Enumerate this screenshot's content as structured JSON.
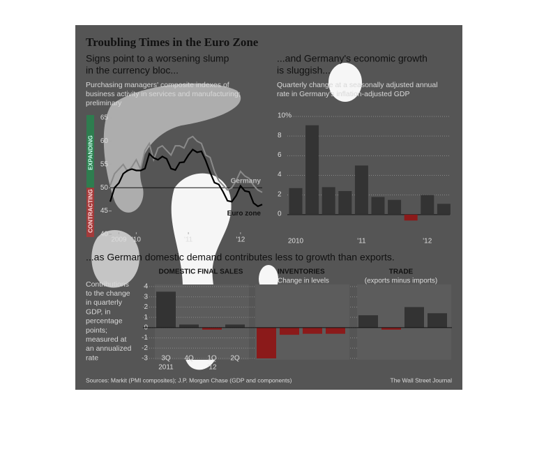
{
  "page": {
    "title": "Troubling Times in the Euro Zone",
    "section_title": "...as German domestic demand contributes less to growth than exports.",
    "section_note": [
      "Contributions",
      "to the change",
      "in quarterly",
      "GDP, in",
      "percentage",
      "points;",
      "measured at",
      "an annualized",
      "rate"
    ],
    "source": "Sources: Markit (PMI composites); J.P. Morgan Chase (GDP and components)",
    "credit": "The Wall Street Journal"
  },
  "chart_data": [
    {
      "type": "line",
      "title": [
        "Signs point to a worsening slump",
        "in the currency bloc..."
      ],
      "subtitle": [
        "Purchasing managers' composite indexes of",
        "business activity in services and manufacturing;",
        "preliminary"
      ],
      "categories": [
        null,
        null,
        "2009",
        null,
        null,
        null,
        "'10",
        null,
        null,
        null,
        null,
        null,
        null,
        null,
        null,
        null,
        null,
        null,
        "'11",
        null,
        null,
        null,
        null,
        null,
        null,
        null,
        null,
        null,
        null,
        null,
        "'12",
        null,
        null,
        null,
        null,
        null
      ],
      "series": [
        {
          "name": "Germany",
          "color": "#8a8a8a",
          "values": [
            50.5,
            53,
            54,
            55,
            53.5,
            54.5,
            56,
            54,
            58,
            59.5,
            56,
            58.5,
            59,
            58,
            57,
            59,
            59,
            58.5,
            60.5,
            61,
            60,
            59.5,
            57,
            56.5,
            53.5,
            51.5,
            50.5,
            49.5,
            50,
            51.5,
            53.5,
            52.5,
            52,
            50.5,
            49.5,
            49
          ]
        },
        {
          "name": "Euro zone",
          "color": "#000000",
          "values": [
            47,
            50,
            51,
            53,
            53.7,
            54,
            53.7,
            53.7,
            54.1,
            57.3,
            56.4,
            56,
            56.7,
            56.2,
            54.1,
            53.8,
            55.4,
            55.5,
            57,
            58.2,
            57.6,
            57.8,
            55.8,
            53.3,
            51.1,
            50.7,
            49.1,
            47.2,
            47,
            48.3,
            50.4,
            49.3,
            49.1,
            46.7,
            46,
            46.4
          ]
        }
      ],
      "ylim": [
        40,
        65
      ],
      "yticks": [
        40,
        45,
        50,
        55,
        60,
        65
      ],
      "reference_line": 50,
      "zones": [
        "EXPANDING",
        "CONTRACTING"
      ]
    },
    {
      "type": "bar",
      "title": [
        "...and Germany's economic growth",
        "is sluggish..."
      ],
      "subtitle": [
        "Quarterly change at a seasonally adjusted annual",
        "rate in Germany's inflation-adjusted GDP"
      ],
      "categories": [
        "2010",
        null,
        null,
        null,
        "'11",
        null,
        null,
        null,
        "'12",
        null
      ],
      "values": [
        2.7,
        9.1,
        2.8,
        2.4,
        5.0,
        1.8,
        1.5,
        -0.6,
        2.0,
        1.1
      ],
      "color": "#333333",
      "negative_color": "#8b1a1a",
      "ylim": [
        -2,
        10
      ],
      "yticks": [
        0,
        2,
        4,
        6,
        {
          "value": 8,
          "label": "8"
        },
        {
          "value": 10,
          "label": "10%"
        }
      ],
      "grid": true
    },
    {
      "type": "bar",
      "title": "DOMESTIC FINAL SALES",
      "categories": [
        "3Q",
        "4Q",
        "1Q",
        "2Q"
      ],
      "category_years": [
        "2011",
        null,
        "'12",
        null
      ],
      "values": [
        3.5,
        0.3,
        -0.2,
        0.3
      ],
      "color": "#333333",
      "negative_color": "#8b1a1a",
      "ylim": [
        -3,
        4
      ],
      "yticks": [
        -3,
        -2,
        -1,
        0,
        1,
        2,
        3,
        4
      ],
      "grid": true
    },
    {
      "type": "bar",
      "title": "INVENTORIES",
      "subtitle": "Change in levels",
      "values": [
        -3.0,
        -0.7,
        -0.6,
        -0.6
      ],
      "color": "#333333",
      "negative_color": "#8b1a1a",
      "ylim": [
        -3,
        4
      ]
    },
    {
      "type": "bar",
      "title": "TRADE",
      "subtitle": "(exports minus imports)",
      "values": [
        1.2,
        -0.2,
        2.0,
        1.4
      ],
      "color": "#333333",
      "negative_color": "#8b1a1a",
      "ylim": [
        -3,
        4
      ]
    }
  ]
}
